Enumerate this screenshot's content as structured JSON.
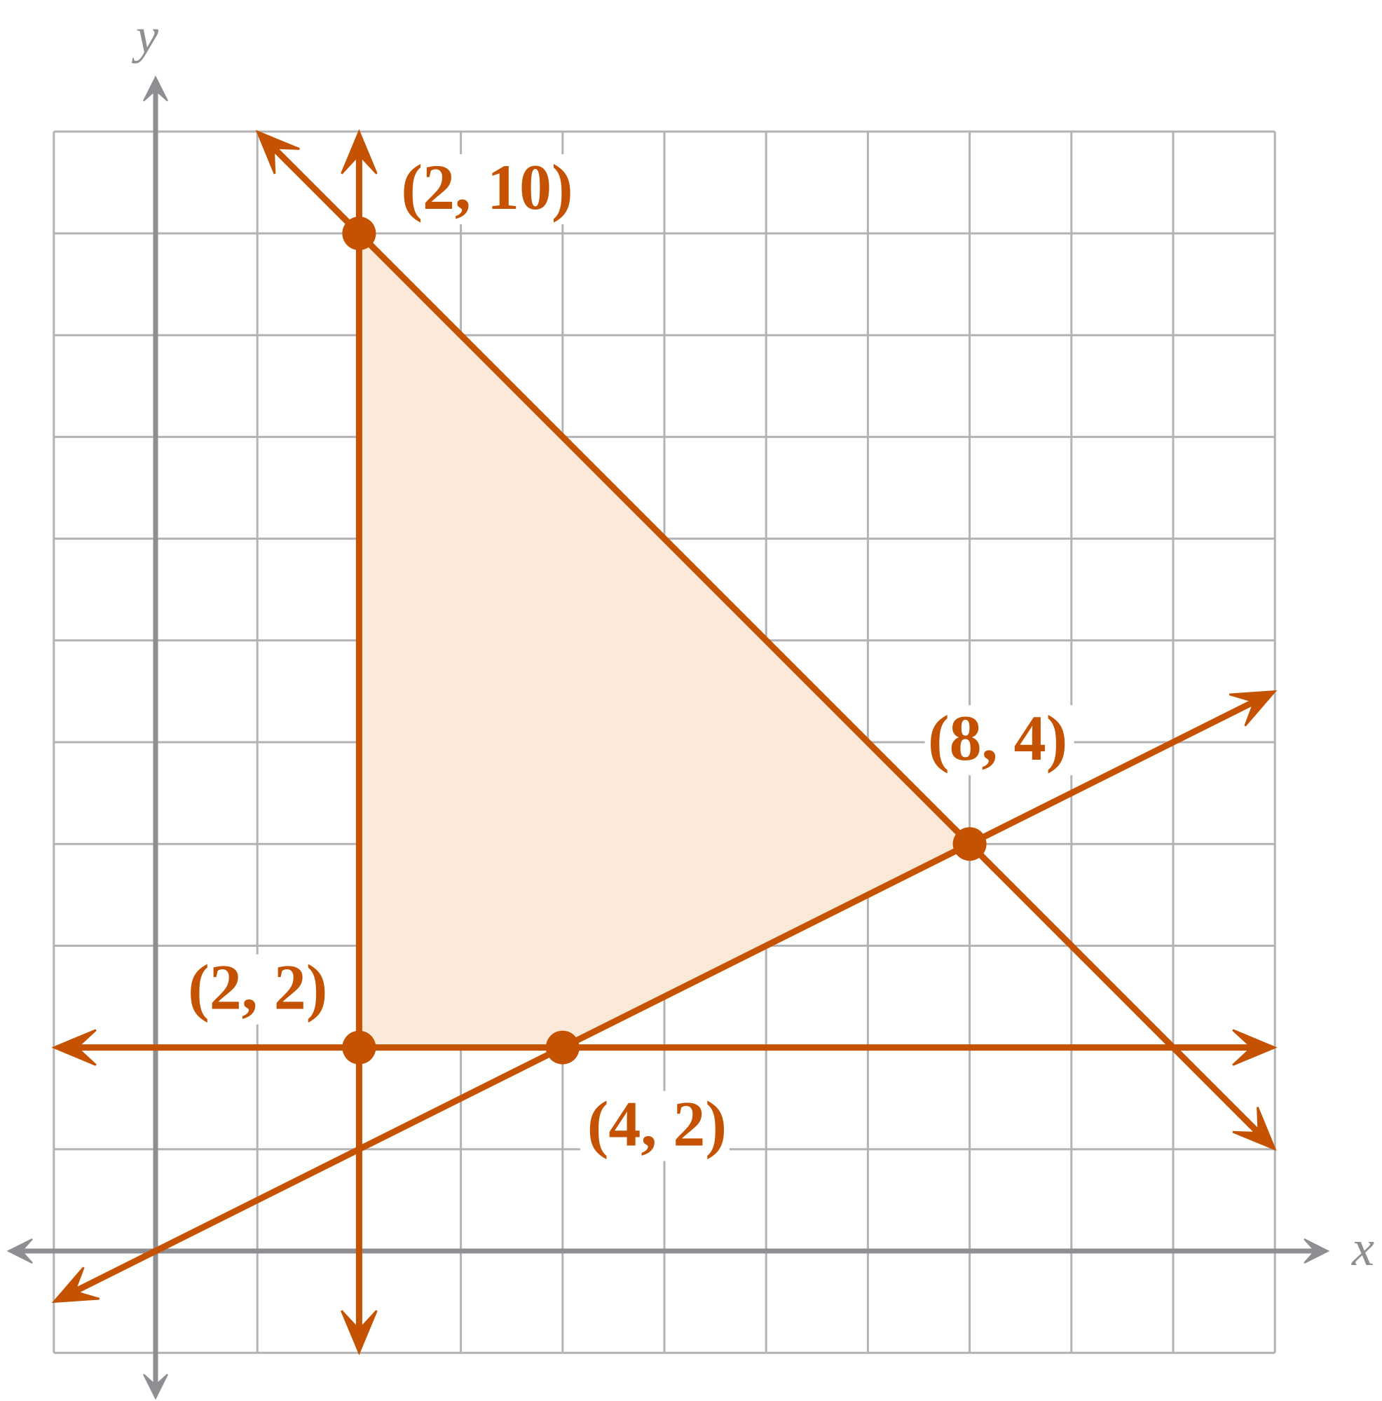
{
  "colors": {
    "grid": "#b3b3b5",
    "axis": "#8e8e93",
    "line": "#c45200",
    "fill": "#fde9d9",
    "label": "#c45200",
    "background": "#ffffff"
  },
  "axes": {
    "x_label": "x",
    "y_label": "y"
  },
  "chart_data": {
    "type": "graph-of-inequalities",
    "x_range": [
      -1,
      11
    ],
    "y_range": [
      -1,
      11
    ],
    "grid": true,
    "feasible_region": [
      [
        2,
        10
      ],
      [
        2,
        2
      ],
      [
        4,
        2
      ],
      [
        8,
        4
      ]
    ],
    "lines": [
      {
        "kind": "vertical",
        "x": 2
      },
      {
        "kind": "horizontal",
        "y": 2
      },
      {
        "kind": "through",
        "from": [
          -1,
          -0.5
        ],
        "to": [
          11,
          5.5
        ]
      },
      {
        "kind": "through",
        "from": [
          1,
          11
        ],
        "to": [
          11,
          1
        ]
      }
    ],
    "points": [
      {
        "x": 2,
        "y": 10,
        "label": "(2, 10)"
      },
      {
        "x": 2,
        "y": 2,
        "label": "(2, 2)"
      },
      {
        "x": 4,
        "y": 2,
        "label": "(4, 2)"
      },
      {
        "x": 8,
        "y": 4,
        "label": "(8, 4)"
      }
    ]
  }
}
